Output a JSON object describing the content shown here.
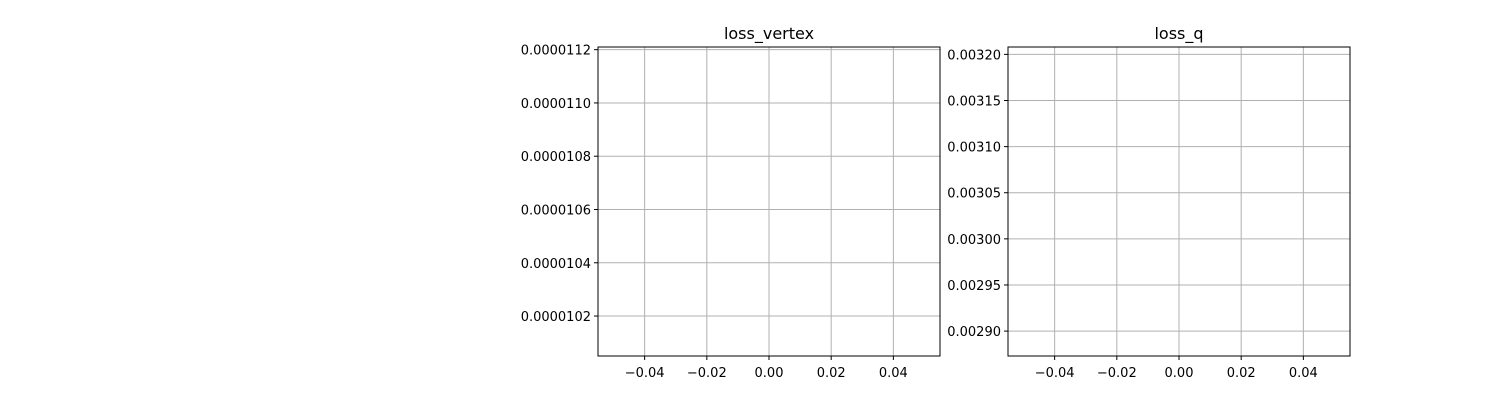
{
  "chart_data": [
    {
      "type": "line",
      "title": "loss_vertex",
      "xlabel": "",
      "ylabel": "",
      "grid": true,
      "xlim": [
        -0.055,
        0.055
      ],
      "ylim": [
        1.005e-05,
        1.121e-05
      ],
      "x_ticks": [
        -0.04,
        -0.02,
        0.0,
        0.02,
        0.04
      ],
      "x_tick_labels": [
        "−0.04",
        "−0.02",
        "0.00",
        "0.02",
        "0.04"
      ],
      "y_ticks": [
        1.02e-05,
        1.04e-05,
        1.06e-05,
        1.08e-05,
        1.1e-05,
        1.12e-05
      ],
      "y_tick_labels": [
        "0.0000102",
        "0.0000104",
        "0.0000106",
        "0.0000108",
        "0.0000110",
        "0.0000112"
      ],
      "series": []
    },
    {
      "type": "line",
      "title": "loss_q",
      "xlabel": "",
      "ylabel": "",
      "grid": true,
      "xlim": [
        -0.055,
        0.055
      ],
      "ylim": [
        0.002873,
        0.003208
      ],
      "x_ticks": [
        -0.04,
        -0.02,
        0.0,
        0.02,
        0.04
      ],
      "x_tick_labels": [
        "−0.04",
        "−0.02",
        "0.00",
        "0.02",
        "0.04"
      ],
      "y_ticks": [
        0.0029,
        0.00295,
        0.003,
        0.00305,
        0.0031,
        0.00315,
        0.0032
      ],
      "y_tick_labels": [
        "0.00290",
        "0.00295",
        "0.00300",
        "0.00305",
        "0.00310",
        "0.00315",
        "0.00320"
      ],
      "series": []
    }
  ]
}
